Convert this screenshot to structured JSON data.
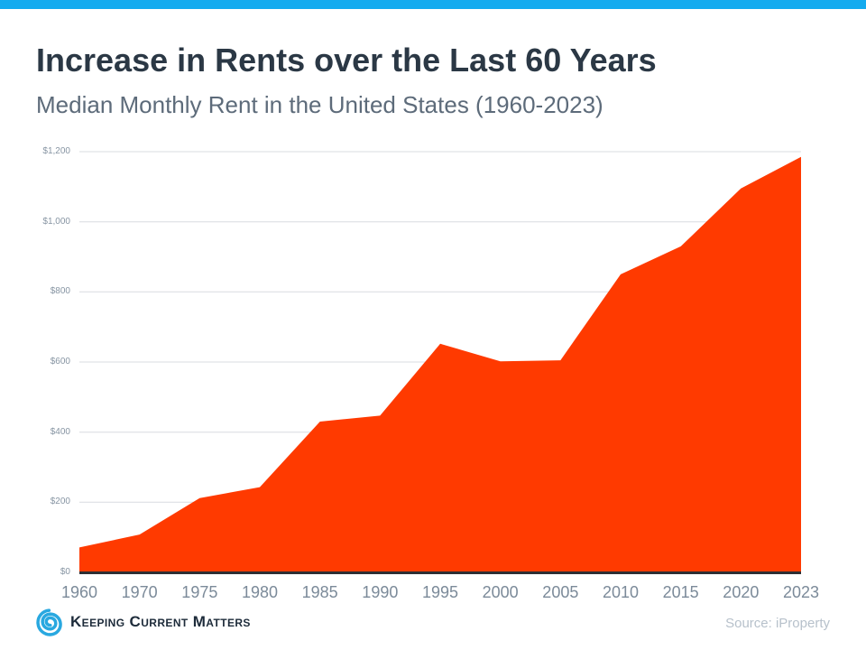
{
  "header": {
    "title": "Increase in Rents over the Last 60 Years",
    "subtitle": "Median Monthly Rent in the United States (1960-2023)"
  },
  "footer": {
    "logo_text": "Keeping Current Matters",
    "source": "Source: iProperty"
  },
  "colors": {
    "accent_bar": "#14abef",
    "area_fill": "#ff3a00",
    "axis_line": "#2d2f33",
    "gridline": "#d9dce0",
    "ytick_text": "#8795a3",
    "xtick_text": "#7b8a99",
    "logo_blue": "#29a8e0"
  },
  "chart_data": {
    "type": "area",
    "title": "Increase in Rents over the Last 60 Years",
    "subtitle": "Median Monthly Rent in the United States (1960-2023)",
    "categories": [
      "1960",
      "1970",
      "1975",
      "1980",
      "1985",
      "1990",
      "1995",
      "2000",
      "2005",
      "2010",
      "2015",
      "2020",
      "2023"
    ],
    "values": [
      71,
      108,
      212,
      243,
      430,
      447,
      652,
      602,
      605,
      850,
      930,
      1095,
      1185
    ],
    "xlabel": "",
    "ylabel": "",
    "ylim": [
      0,
      1200
    ],
    "ytick_step": 200,
    "ytick_labels": [
      "$0",
      "$200",
      "$400",
      "$600",
      "$800",
      "$1,000",
      "$1,200"
    ],
    "grid": true,
    "legend": "none",
    "fill_color": "#ff3a00",
    "gridline_color": "#d9dce0",
    "axis_line_color": "#2d2f33"
  }
}
